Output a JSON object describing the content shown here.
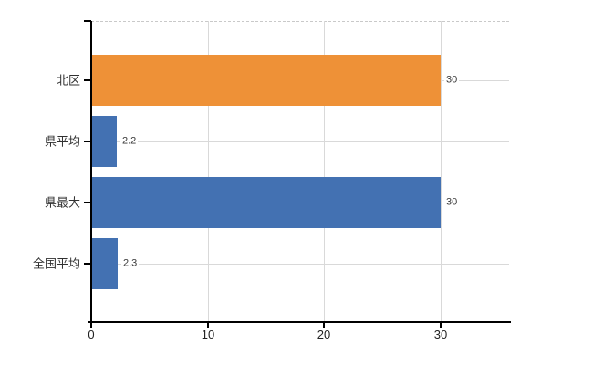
{
  "chart_data": {
    "type": "bar",
    "orientation": "horizontal",
    "title": "",
    "categories": [
      "北区",
      "県平均",
      "県最大",
      "全国平均"
    ],
    "values": [
      30,
      2.2,
      30,
      2.3
    ],
    "data_labels": [
      "30",
      "2.2",
      "30",
      "2.3"
    ],
    "bar_colors": [
      "#EE9137",
      "#4371B2",
      "#4371B2",
      "#4371B2"
    ],
    "x_ticks": [
      0,
      10,
      20,
      30
    ],
    "x_tick_labels": [
      "0",
      "10",
      "20",
      "30"
    ],
    "xlim": [
      0,
      36
    ],
    "grid": true,
    "legend": false,
    "colors": {
      "orange_series": "#EE9137",
      "blue_series": "#4371B2",
      "gridline": "#D9D9D9",
      "axis": "#000000",
      "label_text": "#303030"
    }
  }
}
